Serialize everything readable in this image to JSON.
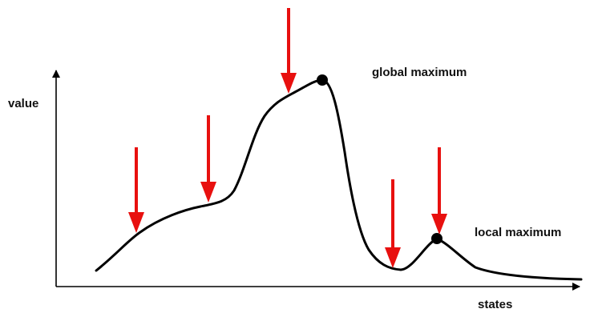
{
  "axes": {
    "y_label": "value",
    "x_label": "states"
  },
  "annotations": {
    "global_max_label": "global maximum",
    "local_max_label": "local maximum"
  },
  "colors": {
    "curve": "#000000",
    "arrows": "#e8100f",
    "axes": "#000000",
    "markers": "#000000"
  },
  "arrow_count": 5,
  "marked_maxima": [
    "global maximum",
    "local maximum"
  ]
}
